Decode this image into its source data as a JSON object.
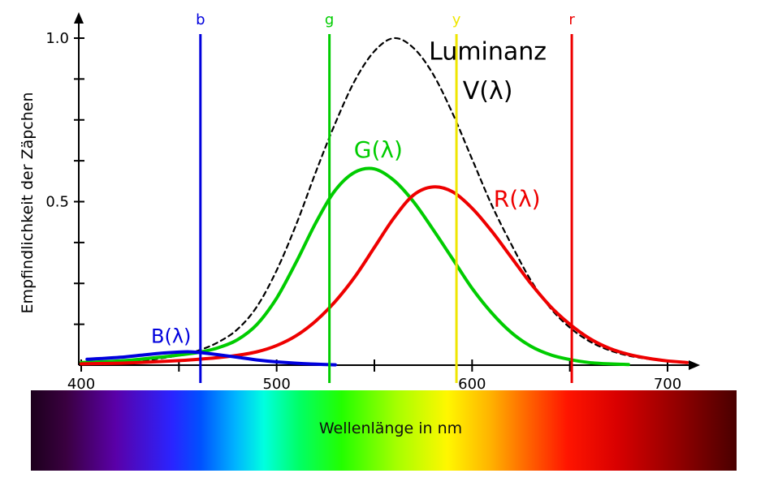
{
  "chart_data": {
    "type": "line",
    "xlabel": "Wellenlänge in nm",
    "ylabel": "Empfindlichkeit der Zäpchen",
    "xlim": [
      400,
      712
    ],
    "ylim": [
      0,
      1.05
    ],
    "grid": false,
    "x_tick_labels": [
      {
        "value": 400,
        "label": "400"
      },
      {
        "value": 500,
        "label": "500"
      },
      {
        "value": 600,
        "label": "600"
      },
      {
        "value": 700,
        "label": "700"
      }
    ],
    "x_ticks_minor": [
      400,
      450,
      500,
      550,
      600,
      650,
      700
    ],
    "y_tick_labels": [
      {
        "value": 0.5,
        "label": "0.5"
      },
      {
        "value": 1.0,
        "label": "1.0"
      }
    ],
    "y_ticks_minor": [
      0.125,
      0.25,
      0.375,
      0.5,
      0.625,
      0.75,
      0.875,
      1.0
    ],
    "series": [
      {
        "name": "Luminanz V(λ)",
        "id": "luminanz",
        "color": "#000000",
        "style": "dashed",
        "width": 2.2,
        "x": [
          400,
          410,
          420,
          430,
          440,
          450,
          460,
          470,
          480,
          490,
          500,
          510,
          520,
          530,
          540,
          550,
          560,
          570,
          580,
          590,
          600,
          610,
          620,
          630,
          640,
          650,
          660,
          670,
          680,
          690,
          700,
          710
        ],
        "y": [
          0.001,
          0.003,
          0.006,
          0.012,
          0.02,
          0.03,
          0.045,
          0.07,
          0.11,
          0.18,
          0.29,
          0.43,
          0.59,
          0.74,
          0.87,
          0.96,
          1.0,
          0.97,
          0.89,
          0.77,
          0.63,
          0.49,
          0.37,
          0.26,
          0.175,
          0.115,
          0.073,
          0.046,
          0.029,
          0.019,
          0.012,
          0.008
        ]
      },
      {
        "name": "G(λ)",
        "id": "g",
        "color": "#00cc00",
        "style": "solid",
        "width": 4,
        "x": [
          400,
          410,
          420,
          430,
          440,
          450,
          460,
          470,
          480,
          490,
          500,
          510,
          520,
          530,
          540,
          550,
          560,
          570,
          580,
          590,
          600,
          610,
          620,
          630,
          640,
          650,
          660,
          670,
          680
        ],
        "y": [
          0.008,
          0.01,
          0.013,
          0.018,
          0.024,
          0.031,
          0.039,
          0.053,
          0.078,
          0.125,
          0.205,
          0.315,
          0.435,
          0.535,
          0.59,
          0.6,
          0.565,
          0.5,
          0.415,
          0.325,
          0.235,
          0.16,
          0.1,
          0.058,
          0.032,
          0.017,
          0.008,
          0.004,
          0.002
        ]
      },
      {
        "name": "R(λ)",
        "id": "r",
        "color": "#ee0000",
        "style": "solid",
        "width": 4,
        "x": [
          400,
          410,
          420,
          430,
          440,
          450,
          460,
          470,
          480,
          490,
          500,
          510,
          520,
          530,
          540,
          550,
          560,
          570,
          580,
          590,
          600,
          610,
          620,
          630,
          640,
          650,
          660,
          670,
          680,
          690,
          700,
          710
        ],
        "y": [
          0.004,
          0.005,
          0.006,
          0.008,
          0.011,
          0.014,
          0.018,
          0.023,
          0.03,
          0.041,
          0.06,
          0.09,
          0.135,
          0.195,
          0.27,
          0.36,
          0.45,
          0.52,
          0.545,
          0.53,
          0.48,
          0.41,
          0.33,
          0.25,
          0.18,
          0.125,
          0.082,
          0.052,
          0.033,
          0.021,
          0.013,
          0.008
        ]
      },
      {
        "name": "B(λ)",
        "id": "b",
        "color": "#0000dd",
        "style": "solid",
        "width": 4,
        "x": [
          403,
          410,
          420,
          430,
          440,
          450,
          455,
          460,
          470,
          480,
          490,
          500,
          510,
          520,
          530
        ],
        "y": [
          0.018,
          0.02,
          0.024,
          0.03,
          0.036,
          0.04,
          0.041,
          0.039,
          0.032,
          0.024,
          0.016,
          0.01,
          0.006,
          0.003,
          0.001
        ]
      }
    ],
    "vlines": [
      {
        "label": "b",
        "x": 461,
        "color": "#0000dd"
      },
      {
        "label": "g",
        "x": 527,
        "color": "#00cc00"
      },
      {
        "label": "y",
        "x": 592,
        "color": "#efe600"
      },
      {
        "label": "r",
        "x": 651,
        "color": "#ee0000"
      }
    ],
    "annotations": [
      {
        "id": "luminanz",
        "text": "Luminanz",
        "x": 608,
        "y": 0.955,
        "color": "#000000",
        "size": 30
      },
      {
        "id": "v-lambda",
        "text": "V(λ)",
        "x": 608,
        "y": 0.835,
        "color": "#000000",
        "size": 30
      },
      {
        "id": "g-lambda",
        "text": "G(λ)",
        "x": 552,
        "y": 0.655,
        "color": "#00cc00",
        "size": 28
      },
      {
        "id": "r-lambda",
        "text": "R(λ)",
        "x": 623,
        "y": 0.505,
        "color": "#ee0000",
        "size": 28
      },
      {
        "id": "b-lambda",
        "text": "B(λ)",
        "x": 446,
        "y": 0.085,
        "color": "#0000dd",
        "size": 24
      }
    ],
    "spectrum_bar": {
      "label": "Wellenlänge in nm",
      "stops": [
        {
          "offset": 0.0,
          "color": "#1c001c"
        },
        {
          "offset": 0.05,
          "color": "#3a0040"
        },
        {
          "offset": 0.12,
          "color": "#5a00a8"
        },
        {
          "offset": 0.2,
          "color": "#2a24ff"
        },
        {
          "offset": 0.24,
          "color": "#0050ff"
        },
        {
          "offset": 0.29,
          "color": "#00b4ff"
        },
        {
          "offset": 0.33,
          "color": "#00ffe0"
        },
        {
          "offset": 0.38,
          "color": "#00ff66"
        },
        {
          "offset": 0.44,
          "color": "#22ff00"
        },
        {
          "offset": 0.52,
          "color": "#a8ff00"
        },
        {
          "offset": 0.59,
          "color": "#fff700"
        },
        {
          "offset": 0.65,
          "color": "#ffb400"
        },
        {
          "offset": 0.7,
          "color": "#ff6a00"
        },
        {
          "offset": 0.76,
          "color": "#ff1500"
        },
        {
          "offset": 0.83,
          "color": "#d90000"
        },
        {
          "offset": 0.92,
          "color": "#8f0000"
        },
        {
          "offset": 1.0,
          "color": "#4a0000"
        }
      ]
    }
  }
}
